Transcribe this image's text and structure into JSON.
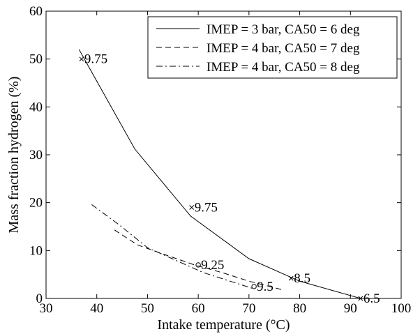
{
  "chart_data": {
    "type": "line",
    "xlabel": "Intake temperature (°C)",
    "ylabel": "Mass fraction hydrogen (%)",
    "xlim": [
      30,
      100
    ],
    "ylim": [
      0,
      60
    ],
    "xticks": [
      30,
      40,
      50,
      60,
      70,
      80,
      90,
      100
    ],
    "yticks": [
      0,
      10,
      20,
      30,
      40,
      50,
      60
    ],
    "grid": false,
    "legend_position": "top-right",
    "series": [
      {
        "name": "IMEP = 3 bar, CA50 = 6 deg",
        "style": "solid",
        "color": "#000000",
        "x": [
          36.5,
          47.5,
          58.5,
          70,
          80,
          92
        ],
        "y": [
          52,
          31.2,
          17.2,
          8.3,
          3.6,
          0
        ]
      },
      {
        "name": "IMEP = 4 bar, CA50 = 7 deg",
        "style": "dashed",
        "color": "#000000",
        "x": [
          43.5,
          48,
          53,
          59,
          65,
          70,
          77
        ],
        "y": [
          14.3,
          11.2,
          9.3,
          7.1,
          5.3,
          3.6,
          1.7
        ]
      },
      {
        "name": "IMEP = 4 bar, CA50 = 8 deg",
        "style": "dashdot",
        "color": "#000000",
        "x": [
          39,
          44.5,
          50,
          55.5,
          61,
          66,
          71
        ],
        "y": [
          19.6,
          15.3,
          10.6,
          8,
          5.4,
          3.7,
          2
        ]
      }
    ],
    "annotations": [
      {
        "x": 37,
        "y": 50,
        "marker": "x",
        "text": "9.75"
      },
      {
        "x": 58.7,
        "y": 19,
        "marker": "x",
        "text": "9.75"
      },
      {
        "x": 60,
        "y": 7,
        "marker": "o",
        "text": "9.25"
      },
      {
        "x": 71,
        "y": 2.5,
        "marker": "o",
        "text": "9.5"
      },
      {
        "x": 78.3,
        "y": 4.2,
        "marker": "x",
        "text": "8.5"
      },
      {
        "x": 92,
        "y": 0,
        "marker": "x",
        "text": "6.5"
      }
    ]
  }
}
